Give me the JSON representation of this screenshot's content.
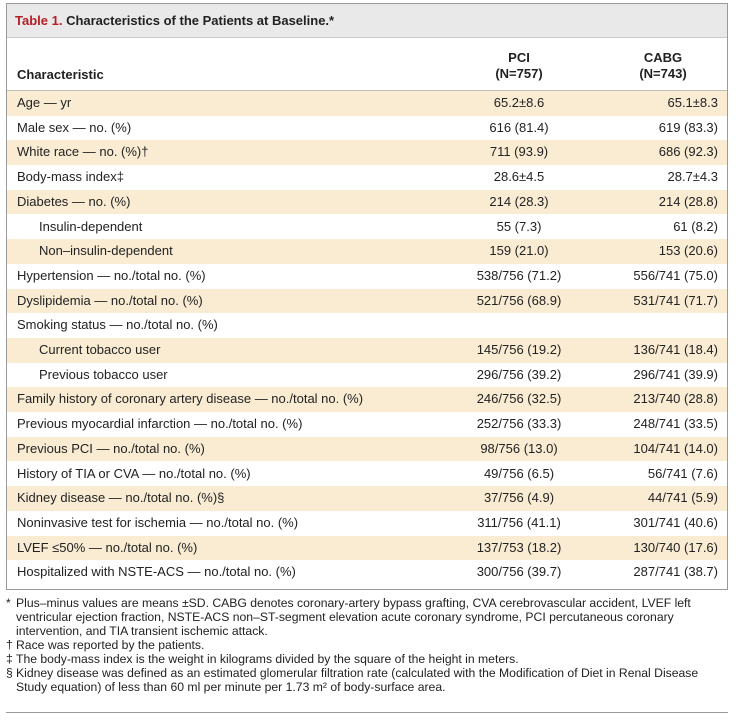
{
  "table": {
    "title_number": "Table 1.",
    "title_text": " Characteristics of the Patients at Baseline.*",
    "header": {
      "characteristic": "Characteristic",
      "col1_name": "PCI",
      "col1_n": "(N=757)",
      "col2_name": "CABG",
      "col2_n": "(N=743)"
    },
    "rows": [
      {
        "label": "Age — yr",
        "pci": "65.2±8.6",
        "cabg": "65.1±8.3",
        "indent": false
      },
      {
        "label": "Male sex — no. (%)",
        "pci": "616 (81.4)",
        "cabg": "619 (83.3)",
        "indent": false
      },
      {
        "label": "White race — no. (%)†",
        "pci": "711 (93.9)",
        "cabg": "686 (92.3)",
        "indent": false
      },
      {
        "label": "Body-mass index‡",
        "pci": "28.6±4.5",
        "cabg": "28.7±4.3",
        "indent": false
      },
      {
        "label": "Diabetes — no. (%)",
        "pci": "214 (28.3)",
        "cabg": "214 (28.8)",
        "indent": false
      },
      {
        "label": "Insulin-dependent",
        "pci": "55 (7.3)",
        "cabg": "61 (8.2)",
        "indent": true
      },
      {
        "label": "Non–insulin-dependent",
        "pci": "159 (21.0)",
        "cabg": "153 (20.6)",
        "indent": true
      },
      {
        "label": "Hypertension — no./total no. (%)",
        "pci": "538/756 (71.2)",
        "cabg": "556/741 (75.0)",
        "indent": false
      },
      {
        "label": "Dyslipidemia — no./total no. (%)",
        "pci": "521/756 (68.9)",
        "cabg": "531/741 (71.7)",
        "indent": false
      },
      {
        "label": "Smoking status — no./total no. (%)",
        "pci": "",
        "cabg": "",
        "indent": false
      },
      {
        "label": "Current tobacco user",
        "pci": "145/756 (19.2)",
        "cabg": "136/741 (18.4)",
        "indent": true
      },
      {
        "label": "Previous tobacco user",
        "pci": "296/756 (39.2)",
        "cabg": "296/741 (39.9)",
        "indent": true
      },
      {
        "label": "Family history of coronary artery disease — no./total no. (%)",
        "pci": "246/756 (32.5)",
        "cabg": "213/740 (28.8)",
        "indent": false
      },
      {
        "label": "Previous myocardial infarction — no./total no. (%)",
        "pci": "252/756 (33.3)",
        "cabg": "248/741 (33.5)",
        "indent": false
      },
      {
        "label": "Previous PCI — no./total no. (%)",
        "pci": "98/756 (13.0)",
        "cabg": "104/741 (14.0)",
        "indent": false
      },
      {
        "label": "History of TIA or CVA — no./total no. (%)",
        "pci": "49/756 (6.5)",
        "cabg": "56/741 (7.6)",
        "indent": false
      },
      {
        "label": "Kidney disease — no./total no. (%)§",
        "pci": "37/756 (4.9)",
        "cabg": "44/741 (5.9)",
        "indent": false
      },
      {
        "label": "Noninvasive test for ischemia — no./total no. (%)",
        "pci": "311/756 (41.1)",
        "cabg": "301/741 (40.6)",
        "indent": false
      },
      {
        "label": "LVEF ≤50% — no./total no. (%)",
        "pci": "137/753 (18.2)",
        "cabg": "130/740 (17.6)",
        "indent": false
      },
      {
        "label": "Hospitalized with NSTE-ACS — no./total no. (%)",
        "pci": "300/756 (39.7)",
        "cabg": "287/741 (38.7)",
        "indent": false
      }
    ],
    "shade_color": "#f9ecd3",
    "title_color": "#b21f24"
  },
  "footnotes": [
    {
      "mark": "*",
      "text": "Plus–minus values are means ±SD. CABG denotes coronary-artery bypass grafting, CVA cerebrovascular accident, LVEF left ventricular ejection fraction, NSTE-ACS non–ST-segment elevation acute coronary syndrome, PCI percutaneous coronary intervention, and TIA transient ischemic attack."
    },
    {
      "mark": "†",
      "text": "Race was reported by the patients."
    },
    {
      "mark": "‡",
      "text": "The body-mass index is the weight in kilograms divided by the square of the height in meters."
    },
    {
      "mark": "§",
      "text": "Kidney disease was defined as an estimated glomerular filtration rate (calculated with the Modification of Diet in Renal Disease Study equation) of less than 60 ml per minute per 1.73 m² of body-surface area."
    }
  ]
}
